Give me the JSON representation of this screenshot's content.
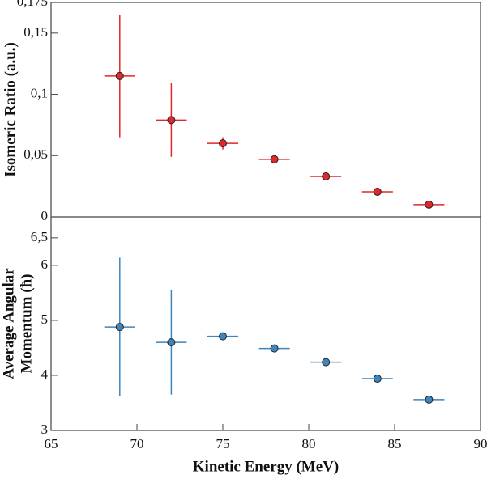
{
  "chart_data": [
    {
      "type": "scatter",
      "ylabel": "Isomeric Ratio (a.u.)",
      "color": "#e3262b",
      "x": [
        69,
        72,
        75,
        78,
        81,
        84,
        87
      ],
      "values": [
        0.115,
        0.079,
        0.06,
        0.047,
        0.033,
        0.0205,
        0.01
      ],
      "y_errors": [
        0.05,
        0.03,
        0.005,
        0.002,
        0.001,
        0.001,
        0.001
      ],
      "x_errors": [
        0.9,
        0.9,
        0.9,
        0.9,
        0.9,
        0.9,
        0.9
      ],
      "xlim": [
        65,
        90
      ],
      "ylim": [
        0,
        0.175
      ],
      "yticks": [
        0,
        {
          "value": 0.05,
          "label": "0,05"
        },
        {
          "value": 0.1,
          "label": "0,1"
        },
        {
          "value": 0.15,
          "label": "0,15"
        },
        {
          "value": 0.175,
          "label": "0,175"
        }
      ]
    },
    {
      "type": "scatter",
      "ylabel": [
        "Average Angular",
        "Momentum (ħ)"
      ],
      "xlabel": "Kinetic Energy (MeV)",
      "color": "#3d85be",
      "x": [
        69,
        72,
        75,
        78,
        81,
        84,
        87
      ],
      "values": [
        4.88,
        4.6,
        4.71,
        4.49,
        4.24,
        3.94,
        3.56
      ],
      "y_errors": [
        1.26,
        0.95,
        0.03,
        0.02,
        0.02,
        0.02,
        0.02
      ],
      "x_errors": [
        0.9,
        0.9,
        0.9,
        0.9,
        0.9,
        0.9,
        0.9
      ],
      "xlim": [
        65,
        90
      ],
      "ylim": [
        3,
        6.88
      ],
      "xticks": [
        65,
        70,
        75,
        80,
        85,
        90
      ],
      "yticks": [
        3,
        4,
        5,
        6,
        {
          "value": 6.5,
          "label": "6,5"
        }
      ]
    }
  ]
}
